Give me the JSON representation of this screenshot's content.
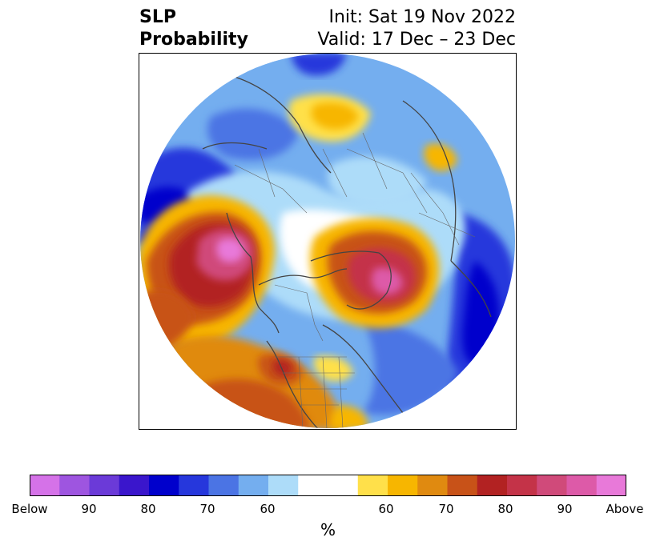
{
  "title": {
    "left_line1": "SLP",
    "left_line2": "Probability",
    "right_line1": "Init: Sat 19 Nov 2022",
    "right_line2": "Valid: 17 Dec – 23 Dec"
  },
  "colorbar": {
    "colors": [
      "#d572e8",
      "#9e55e0",
      "#6b3ad8",
      "#3a16cc",
      "#0000cc",
      "#2637dc",
      "#4b74e4",
      "#74aeef",
      "#addcf9",
      "#ffffff",
      "#ffe04a",
      "#f7b600",
      "#e08a10",
      "#c85218",
      "#b22222",
      "#c43348",
      "#d04a7a",
      "#dd5aa8",
      "#e879d9"
    ],
    "tick_labels": [
      "Below",
      "90",
      "80",
      "70",
      "60",
      "60",
      "70",
      "80",
      "90",
      "Above"
    ],
    "units": "%"
  }
}
